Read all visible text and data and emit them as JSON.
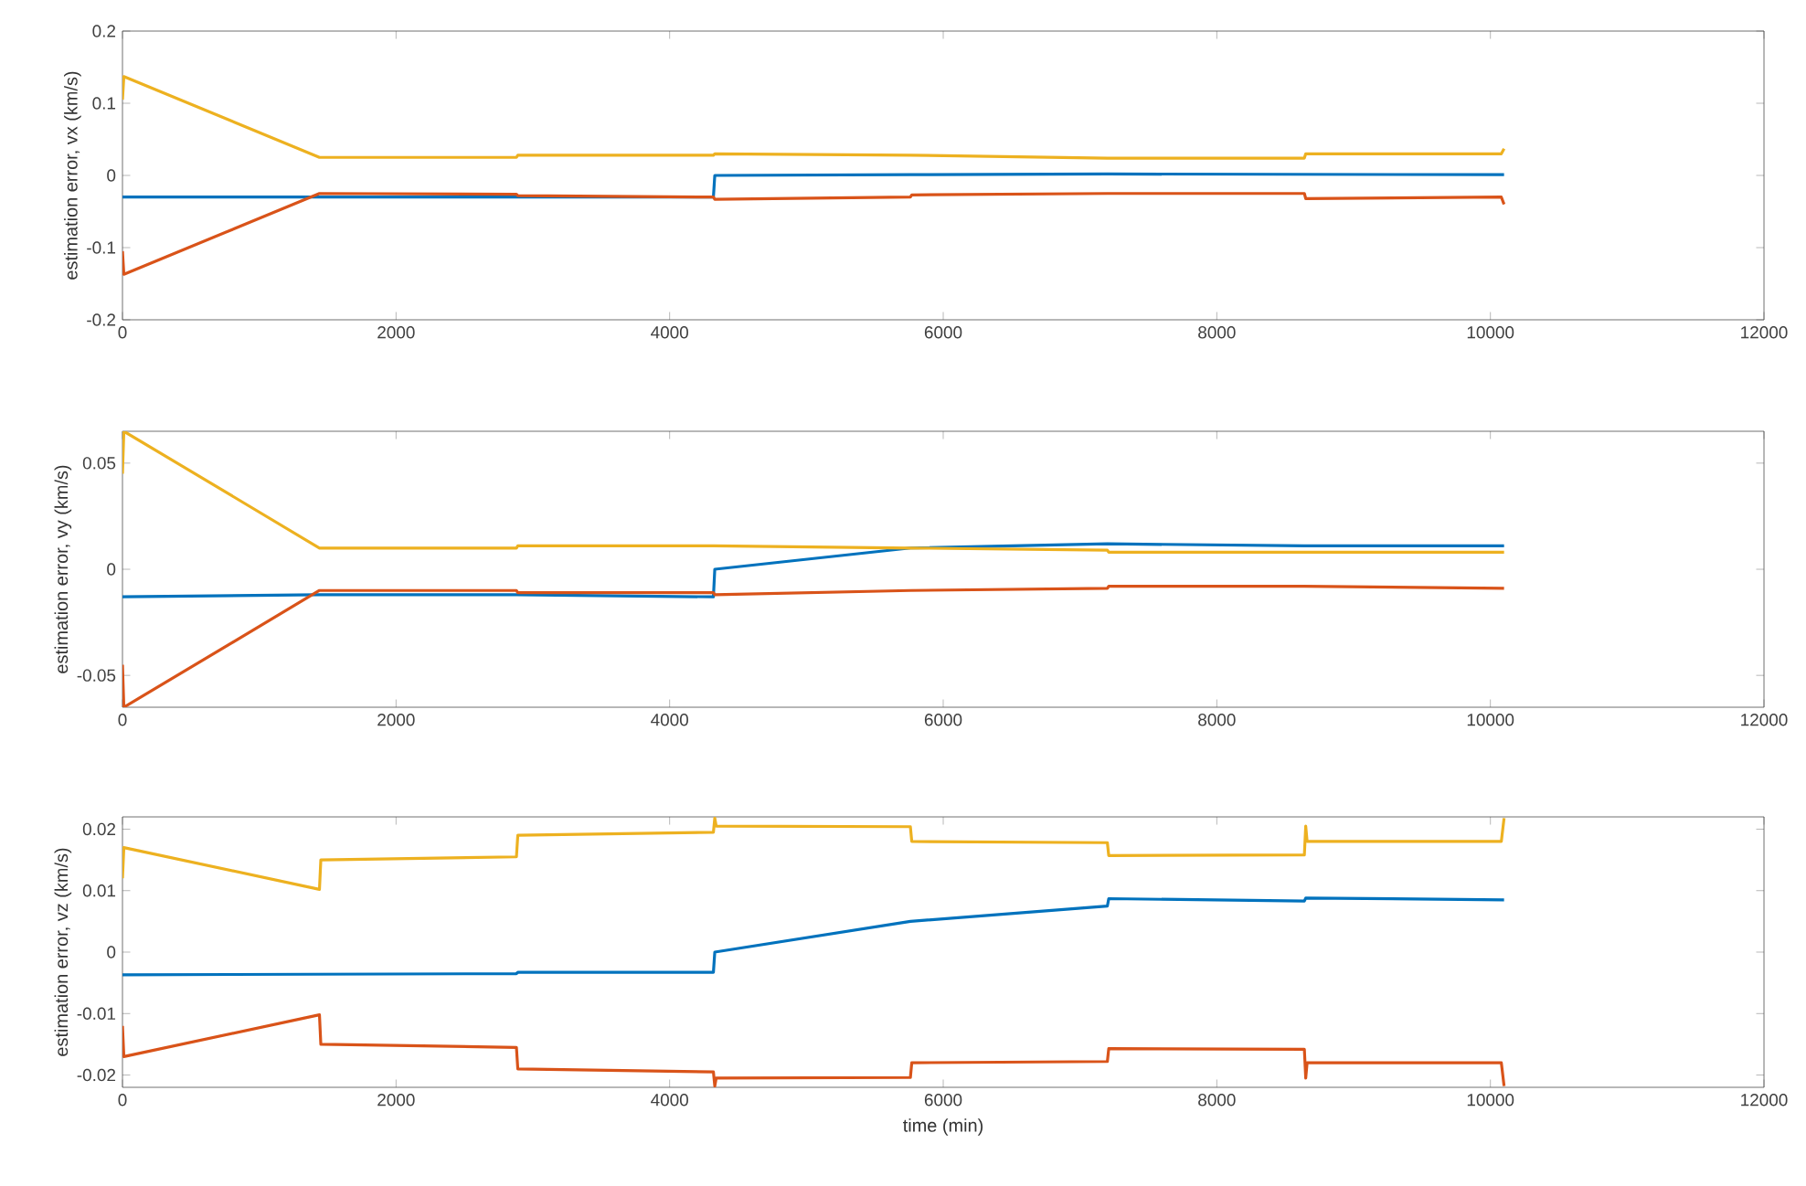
{
  "chart_data": [
    {
      "type": "line",
      "ylabel": "estimation error, vx (km/s)",
      "xlim": [
        0,
        12000
      ],
      "xticks": [
        0,
        2000,
        4000,
        6000,
        8000,
        10000,
        12000
      ],
      "ylim": [
        -0.2,
        0.2
      ],
      "yticks": [
        -0.2,
        -0.1,
        0,
        0.1,
        0.2
      ],
      "grid": false,
      "marker": "none",
      "line_style": "solid",
      "series": [
        {
          "color": "#0072bd",
          "x": [
            0,
            1440,
            2880,
            4320,
            4330,
            5760,
            7200,
            10100
          ],
          "values": [
            -0.03,
            -0.03,
            -0.03,
            -0.03,
            0,
            0.001,
            0.002,
            0.001
          ]
        },
        {
          "color": "#d95319",
          "x": [
            0,
            10,
            1440,
            2880,
            2890,
            4320,
            4330,
            5760,
            5770,
            7200,
            8640,
            8650,
            10080,
            10100
          ],
          "values": [
            -0.105,
            -0.137,
            -0.025,
            -0.026,
            -0.028,
            -0.03,
            -0.033,
            -0.03,
            -0.027,
            -0.025,
            -0.025,
            -0.032,
            -0.03,
            -0.04
          ]
        },
        {
          "color": "#edb120",
          "x": [
            0,
            10,
            1440,
            2880,
            2890,
            4320,
            4330,
            5760,
            7200,
            8640,
            8650,
            10080,
            10100
          ],
          "values": [
            0.105,
            0.137,
            0.025,
            0.025,
            0.028,
            0.028,
            0.03,
            0.028,
            0.024,
            0.024,
            0.03,
            0.03,
            0.037
          ]
        }
      ]
    },
    {
      "type": "line",
      "ylabel": "estimation error, vy (km/s)",
      "xlim": [
        0,
        12000
      ],
      "xticks": [
        0,
        2000,
        4000,
        6000,
        8000,
        10000,
        12000
      ],
      "ylim": [
        -0.065,
        0.065
      ],
      "yticks": [
        -0.05,
        0,
        0.05
      ],
      "grid": false,
      "marker": "none",
      "line_style": "solid",
      "series": [
        {
          "color": "#0072bd",
          "x": [
            0,
            1440,
            2880,
            4320,
            4330,
            5760,
            7200,
            8640,
            10100
          ],
          "values": [
            -0.013,
            -0.012,
            -0.012,
            -0.013,
            0,
            0.01,
            0.012,
            0.011,
            0.011
          ]
        },
        {
          "color": "#d95319",
          "x": [
            0,
            10,
            1440,
            2880,
            2890,
            4320,
            4330,
            5760,
            7200,
            7210,
            8640,
            10100
          ],
          "values": [
            -0.045,
            -0.065,
            -0.01,
            -0.01,
            -0.011,
            -0.011,
            -0.012,
            -0.01,
            -0.009,
            -0.008,
            -0.008,
            -0.009
          ]
        },
        {
          "color": "#edb120",
          "x": [
            0,
            10,
            1440,
            2880,
            2890,
            4320,
            5760,
            7200,
            7210,
            10100
          ],
          "values": [
            0.045,
            0.065,
            0.01,
            0.01,
            0.011,
            0.011,
            0.01,
            0.009,
            0.008,
            0.008
          ]
        }
      ]
    },
    {
      "type": "line",
      "xlabel": "time (min)",
      "ylabel": "estimation error, vz (km/s)",
      "xlim": [
        0,
        12000
      ],
      "xticks": [
        0,
        2000,
        4000,
        6000,
        8000,
        10000,
        12000
      ],
      "ylim": [
        -0.022,
        0.022
      ],
      "yticks": [
        -0.02,
        -0.01,
        0,
        0.01,
        0.02
      ],
      "grid": false,
      "marker": "none",
      "line_style": "solid",
      "series": [
        {
          "color": "#0072bd",
          "x": [
            0,
            1440,
            2880,
            2890,
            4320,
            4330,
            5760,
            7200,
            7210,
            8640,
            8650,
            10100
          ],
          "values": [
            -0.0037,
            -0.0036,
            -0.0035,
            -0.0033,
            -0.0033,
            0,
            0.005,
            0.0075,
            0.0087,
            0.0083,
            0.0088,
            0.0085
          ]
        },
        {
          "color": "#d95319",
          "x": [
            0,
            10,
            1440,
            1450,
            2880,
            2890,
            4320,
            4330,
            4340,
            5760,
            5770,
            7200,
            7210,
            8640,
            8650,
            8660,
            10080,
            10100
          ],
          "values": [
            -0.012,
            -0.017,
            -0.0102,
            -0.015,
            -0.0155,
            -0.019,
            -0.0195,
            -0.0218,
            -0.0205,
            -0.0204,
            -0.018,
            -0.0178,
            -0.0157,
            -0.0158,
            -0.0205,
            -0.018,
            -0.018,
            -0.0218
          ]
        },
        {
          "color": "#edb120",
          "x": [
            0,
            10,
            1440,
            1450,
            2880,
            2890,
            4320,
            4330,
            4340,
            5760,
            5770,
            7200,
            7210,
            8640,
            8650,
            8660,
            10080,
            10100
          ],
          "values": [
            0.012,
            0.017,
            0.0102,
            0.015,
            0.0155,
            0.019,
            0.0195,
            0.0218,
            0.0205,
            0.0204,
            0.018,
            0.0178,
            0.0157,
            0.0158,
            0.0205,
            0.018,
            0.018,
            0.0218
          ]
        }
      ]
    }
  ]
}
